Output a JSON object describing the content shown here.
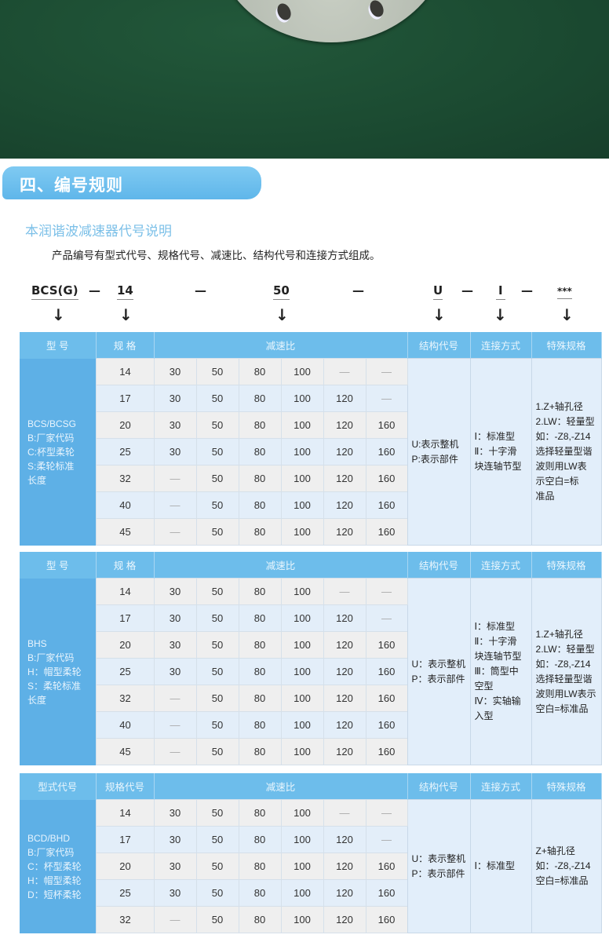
{
  "section": {
    "title": "四、编号规则",
    "subtitle": "本润谐波减速器代号说明",
    "intro": "产品编号有型式代号、规格代号、减速比、结构代号和连接方式组成。"
  },
  "code_example": {
    "model": "BCS(G)",
    "size": "14",
    "ratio": "50",
    "structure": "U",
    "connection": "I",
    "special": "***",
    "separator": "—",
    "arrow": "↓"
  },
  "colors": {
    "header": "#6dbdeb",
    "type_column": "#5eb0e6",
    "row_gray": "#efefef",
    "row_blue": "#e3eef9"
  },
  "tables": [
    {
      "headers": [
        "型 号",
        "规 格",
        "减速比",
        "结构代号",
        "连接方式",
        "特殊规格"
      ],
      "type_text": "BCS/BCSG\nB:厂家代码\nC:杯型柔轮\nS:柔轮标准\n长度",
      "structure_text": "U:表示整机\nP:表示部件",
      "connection_text": "Ⅰ：标准型\nⅡ：十字滑\n块连轴节型",
      "special_text": "1.Z+轴孔径\n2.LW：轻量型\n如：-Z8,-Z14\n选择轻量型谐\n波则用LW表\n示空白=标\n准品",
      "rows": [
        [
          "14",
          "30",
          "50",
          "80",
          "100",
          "—",
          "—"
        ],
        [
          "17",
          "30",
          "50",
          "80",
          "100",
          "120",
          "—"
        ],
        [
          "20",
          "30",
          "50",
          "80",
          "100",
          "120",
          "160"
        ],
        [
          "25",
          "30",
          "50",
          "80",
          "100",
          "120",
          "160"
        ],
        [
          "32",
          "—",
          "50",
          "80",
          "100",
          "120",
          "160"
        ],
        [
          "40",
          "—",
          "50",
          "80",
          "100",
          "120",
          "160"
        ],
        [
          "45",
          "—",
          "50",
          "80",
          "100",
          "120",
          "160"
        ]
      ]
    },
    {
      "headers": [
        "型 号",
        "规 格",
        "减速比",
        "结构代号",
        "连接方式",
        "特殊规格"
      ],
      "type_text": "BHS\nB:厂家代码\nH：帽型柔轮\nS：柔轮标准\n长度",
      "structure_text": "U：表示整机\nP：表示部件",
      "connection_text": "Ⅰ：标准型\nⅡ：十字滑\n块连轴节型\nⅢ：筒型中\n空型\nⅣ：实轴输\n入型",
      "special_text": "1.Z+轴孔径\n2.LW：轻量型\n如：-Z8,-Z14\n选择轻量型谐\n波则用LW表示\n空白=标准品",
      "rows": [
        [
          "14",
          "30",
          "50",
          "80",
          "100",
          "—",
          "—"
        ],
        [
          "17",
          "30",
          "50",
          "80",
          "100",
          "120",
          "—"
        ],
        [
          "20",
          "30",
          "50",
          "80",
          "100",
          "120",
          "160"
        ],
        [
          "25",
          "30",
          "50",
          "80",
          "100",
          "120",
          "160"
        ],
        [
          "32",
          "—",
          "50",
          "80",
          "100",
          "120",
          "160"
        ],
        [
          "40",
          "—",
          "50",
          "80",
          "100",
          "120",
          "160"
        ],
        [
          "45",
          "—",
          "50",
          "80",
          "100",
          "120",
          "160"
        ]
      ]
    },
    {
      "headers": [
        "型式代号",
        "规格代号",
        "减速比",
        "结构代号",
        "连接方式",
        "特殊规格"
      ],
      "type_text": "BCD/BHD\nB:厂家代码\nC：杯型柔轮\nH：帽型柔轮\nD：短杯柔轮",
      "structure_text": "U：表示整机\nP：表示部件",
      "connection_text": "Ⅰ：标准型",
      "special_text": "Z+轴孔径\n如：-Z8,-Z14\n空白=标准品",
      "rows": [
        [
          "14",
          "30",
          "50",
          "80",
          "100",
          "—",
          "—"
        ],
        [
          "17",
          "30",
          "50",
          "80",
          "100",
          "120",
          "—"
        ],
        [
          "20",
          "30",
          "50",
          "80",
          "100",
          "120",
          "160"
        ],
        [
          "25",
          "30",
          "50",
          "80",
          "100",
          "120",
          "160"
        ],
        [
          "32",
          "—",
          "50",
          "80",
          "100",
          "120",
          "160"
        ]
      ]
    }
  ]
}
